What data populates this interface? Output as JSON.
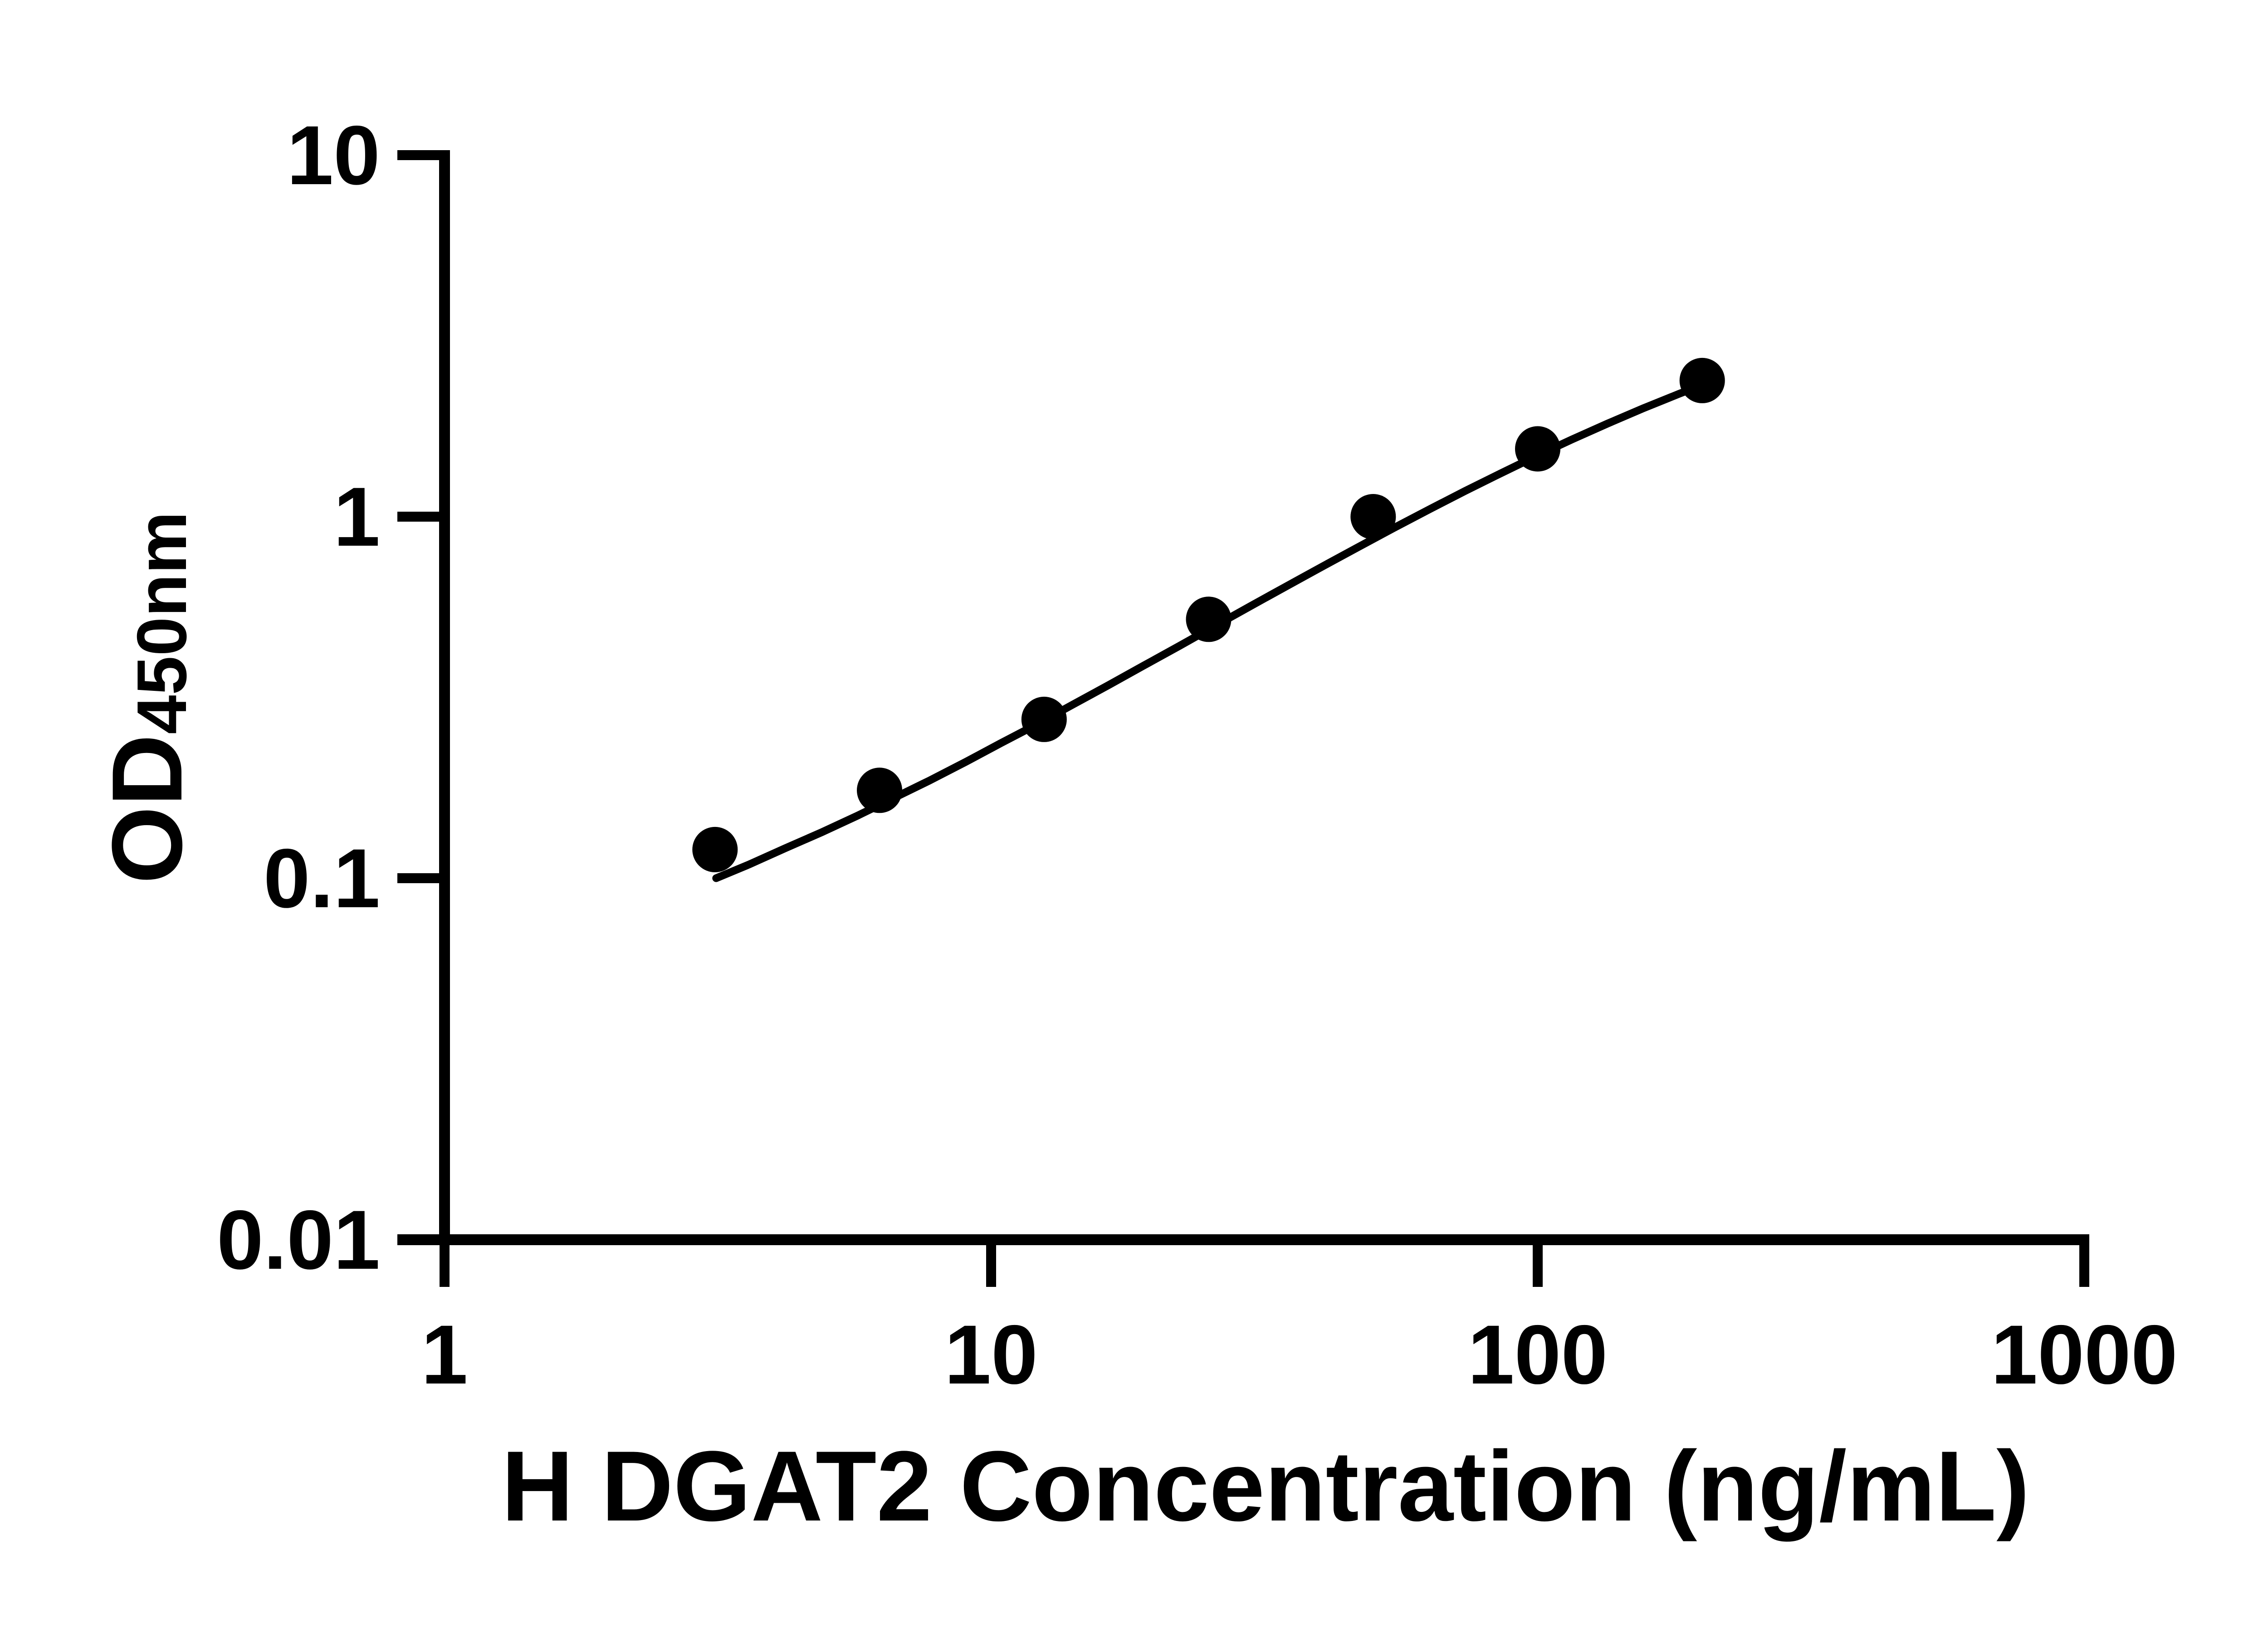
{
  "figure": {
    "background_color": "#ffffff",
    "ink_color": "#000000"
  },
  "chart_data": {
    "type": "scatter",
    "title": "",
    "xlabel": "H DGAT2 Concentration (ng/mL)",
    "ylabel": "OD450nm",
    "ylabel_main": "OD",
    "ylabel_subscript": "450nm",
    "x_scale": "log10",
    "y_scale": "log10",
    "xlim": [
      1,
      1000
    ],
    "ylim": [
      0.01,
      10
    ],
    "grid": "off",
    "legend": "none",
    "x_ticks": [
      {
        "value": 1,
        "label": "1"
      },
      {
        "value": 10,
        "label": "10"
      },
      {
        "value": 100,
        "label": "100"
      },
      {
        "value": 1000,
        "label": "1000"
      }
    ],
    "y_ticks": [
      {
        "value": 10,
        "label": "10"
      },
      {
        "value": 1,
        "label": "1"
      },
      {
        "value": 0.1,
        "label": "0.1"
      },
      {
        "value": 0.01,
        "label": "0.01"
      }
    ],
    "series": [
      {
        "name": "standard-data-points",
        "type": "scatter",
        "marker": "filled-circle",
        "x": [
          3.125,
          6.25,
          12.5,
          25,
          50,
          100,
          200
        ],
        "y": [
          0.12,
          0.175,
          0.275,
          0.52,
          1.0,
          1.54,
          2.38
        ]
      },
      {
        "name": "fitted-standard-curve",
        "type": "line",
        "x": [
          3.14,
          3.6,
          4.2,
          4.9,
          5.7,
          6.6,
          7.7,
          9.0,
          10.4,
          12.1,
          14.1,
          16.4,
          19.0,
          22.1,
          25.7,
          29.9,
          34.7,
          40.3,
          46.9,
          54.5,
          63.3,
          73.6,
          85.5,
          99.4,
          115.5,
          134.2,
          156.0,
          181.3,
          197.0
        ],
        "y": [
          0.1,
          0.109,
          0.121,
          0.134,
          0.149,
          0.166,
          0.186,
          0.21,
          0.236,
          0.266,
          0.302,
          0.342,
          0.387,
          0.439,
          0.499,
          0.567,
          0.642,
          0.727,
          0.823,
          0.93,
          1.047,
          1.177,
          1.317,
          1.471,
          1.635,
          1.809,
          1.994,
          2.186,
          2.295
        ]
      }
    ]
  }
}
